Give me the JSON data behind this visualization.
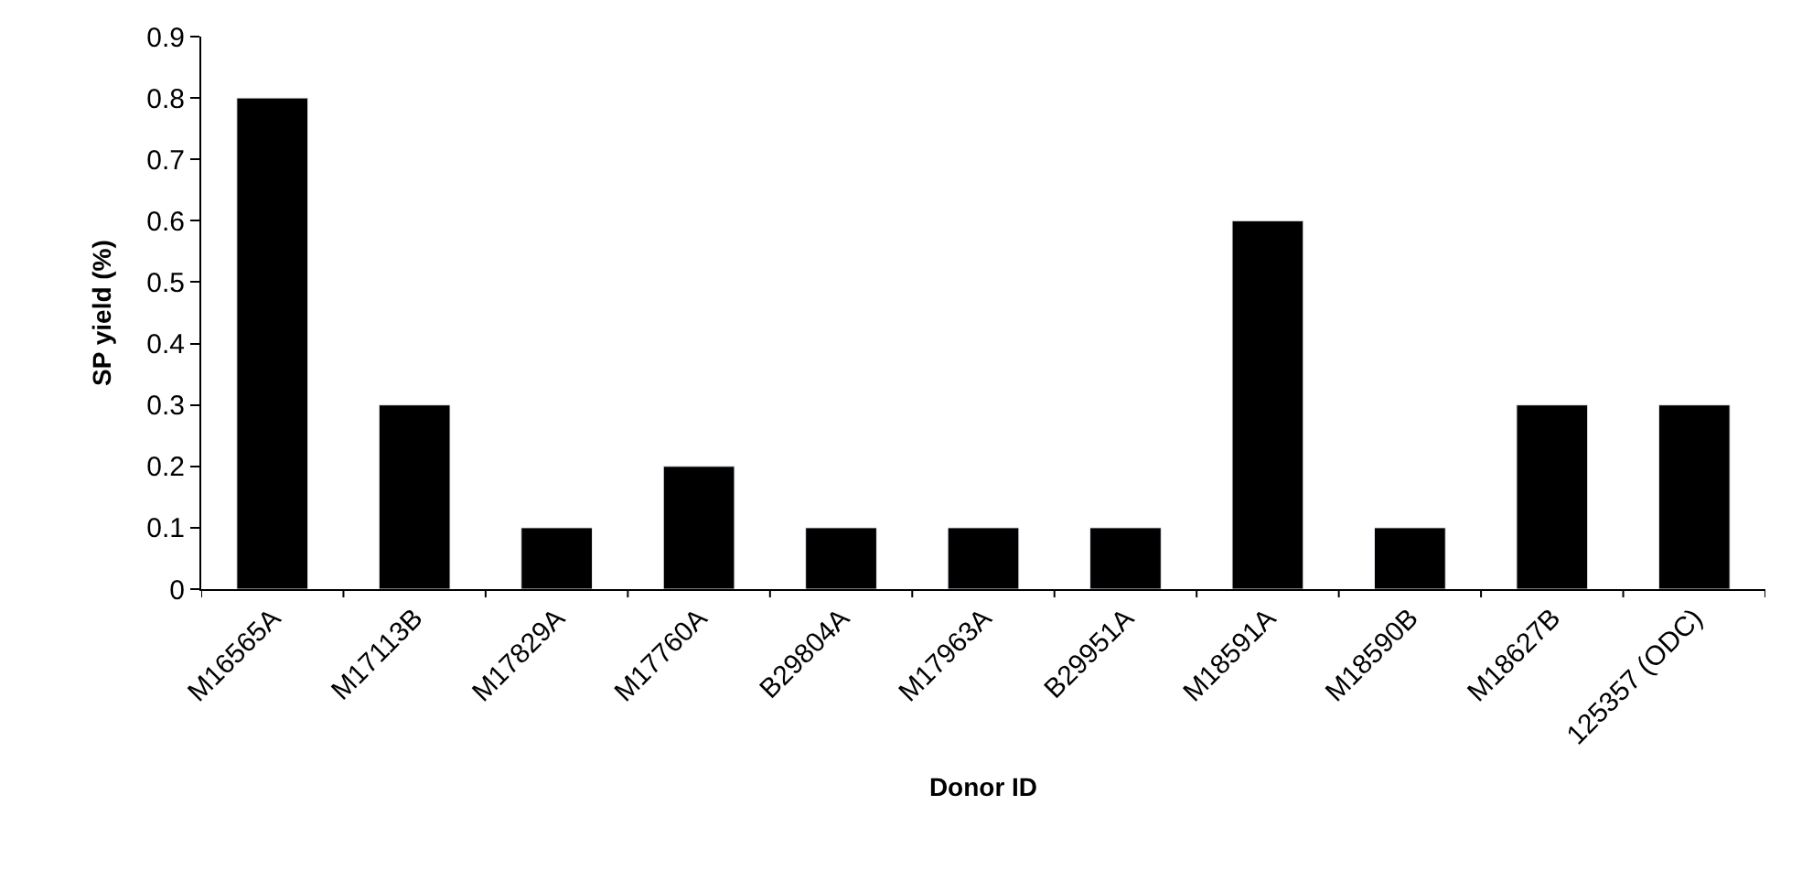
{
  "chart_data": {
    "type": "bar",
    "xlabel": "Donor ID",
    "ylabel": "SP yield (%)",
    "categories": [
      "M16565A",
      "M17113B",
      "M17829A",
      "M17760A",
      "B29804A",
      "M17963A",
      "B29951A",
      "M18591A",
      "M18590B",
      "M18627B",
      "125357 (ODC)"
    ],
    "values": [
      0.8,
      0.3,
      0.1,
      0.2,
      0.1,
      0.1,
      0.1,
      0.6,
      0.1,
      0.3,
      0.3
    ],
    "color": "#000000",
    "ylim": [
      0,
      0.9
    ],
    "yticks": [
      0,
      0.1,
      0.2,
      0.3,
      0.4,
      0.5,
      0.6,
      0.7,
      0.8,
      0.9
    ],
    "grid": false,
    "legend": false
  }
}
